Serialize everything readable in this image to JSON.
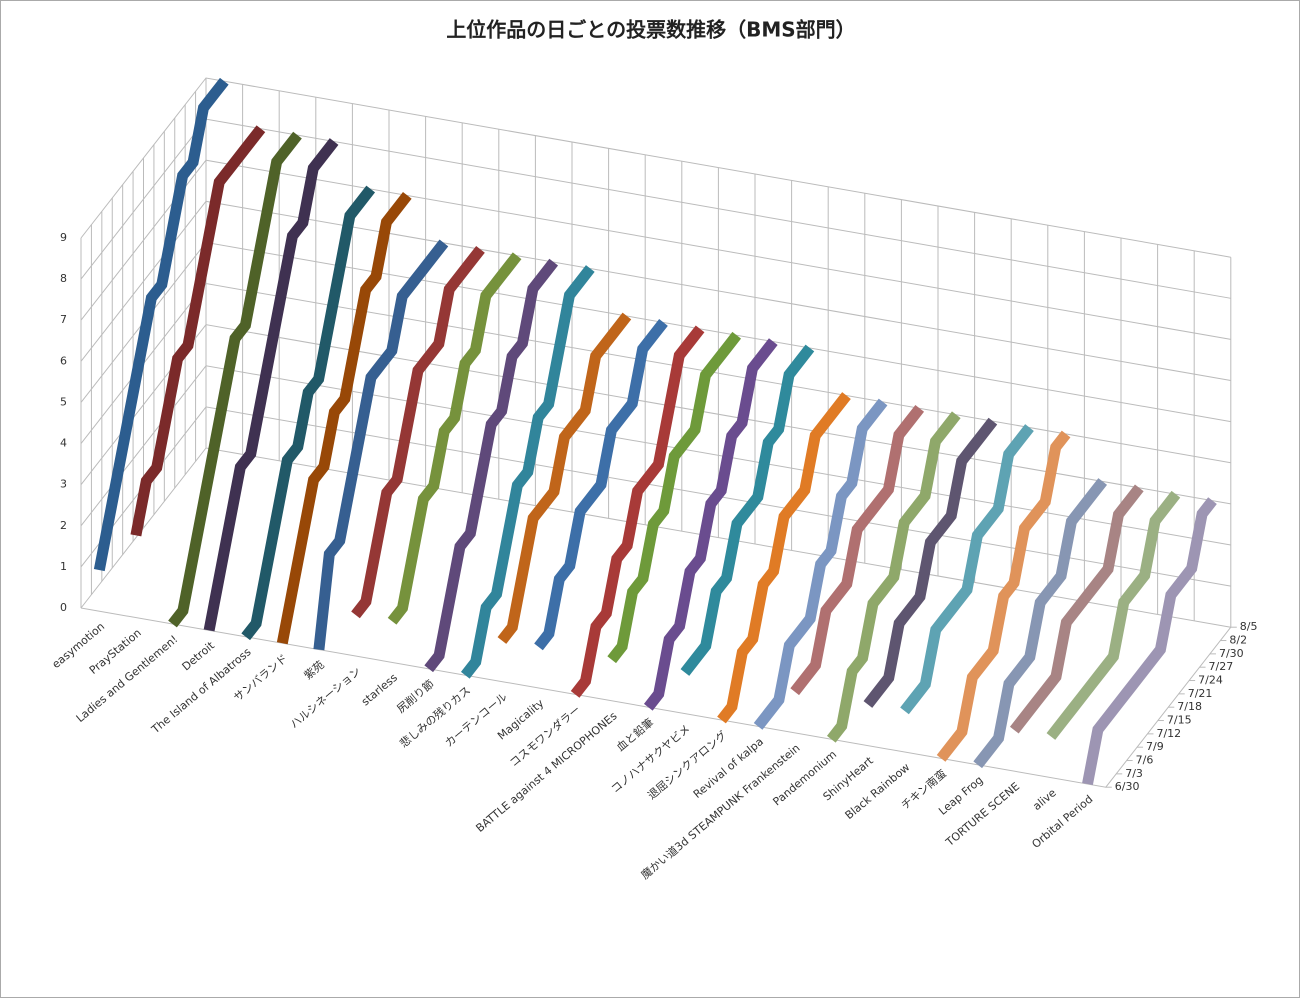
{
  "chart_data": {
    "type": "line3d",
    "title": "上位作品の日ごとの投票数推移（BMS部門）",
    "categories": [
      "easymotion",
      "PrayStation",
      "Ladies and Gentlemen!",
      "Detroit",
      "The Island of Albatross",
      "サンバランド",
      "紫苑",
      "ハルシネーション",
      "starless",
      "尻削り節",
      "悲しみの残りカス",
      "カーテンコール",
      "Magicality",
      "コスモワンダラー",
      "BATTLE against 4 MICROPHONEs",
      "血と鉛筆",
      "コノハナサクヤビメ",
      "退屈シンクアロング",
      "Revival of kalpa",
      "魔かい道3d STEAMPUNK Frankenstein",
      "Pandemonium",
      "ShinyHeart",
      "Black Rainbow",
      "チキン南蛮",
      "Leap Frog",
      "TORTURE SCENE",
      "alive",
      "Orbital Period"
    ],
    "x": [
      "6/30",
      "7/3",
      "7/6",
      "7/9",
      "7/12",
      "7/15",
      "7/18",
      "7/21",
      "7/24",
      "7/27",
      "7/30",
      "8/2",
      "8/5"
    ],
    "ylim": [
      0,
      9
    ],
    "yticks": [
      0,
      1,
      2,
      3,
      4,
      5,
      6,
      7,
      8,
      9
    ],
    "grid": true,
    "series": [
      {
        "color": "#2c5d8f",
        "values": [
          1,
          2,
          3,
          4,
          5,
          6,
          6,
          7,
          8,
          8,
          9,
          9,
          9
        ]
      },
      {
        "color": "#7b2a2a",
        "values": [
          2,
          3,
          3,
          4,
          5,
          5,
          6,
          7,
          8,
          8,
          8,
          8,
          8
        ]
      },
      {
        "color": "#4f6228",
        "values": [
          0,
          0,
          1,
          2,
          3,
          4,
          5,
          5,
          6,
          7,
          8,
          8,
          8
        ]
      },
      {
        "color": "#3f3151",
        "values": [
          0,
          1,
          2,
          3,
          3,
          4,
          5,
          6,
          7,
          7,
          8,
          8,
          8
        ]
      },
      {
        "color": "#215968",
        "values": [
          0,
          0,
          1,
          2,
          3,
          3,
          4,
          4,
          5,
          6,
          7,
          7,
          7
        ]
      },
      {
        "color": "#984807",
        "values": [
          0,
          1,
          2,
          3,
          3,
          4,
          4,
          5,
          6,
          6,
          7,
          7,
          7
        ]
      },
      {
        "color": "#365f91",
        "values": [
          0,
          2,
          2,
          3,
          4,
          5,
          5,
          5,
          6,
          6,
          6,
          6,
          6
        ]
      },
      {
        "color": "#953735",
        "values": [
          1,
          1,
          2,
          3,
          3,
          4,
          5,
          5,
          5,
          6,
          6,
          6,
          6
        ]
      },
      {
        "color": "#76923c",
        "values": [
          1,
          1,
          2,
          3,
          3,
          4,
          4,
          5,
          5,
          6,
          6,
          6,
          6
        ]
      },
      {
        "color": "#5f497a",
        "values": [
          0,
          0,
          1,
          2,
          2,
          3,
          4,
          4,
          5,
          5,
          6,
          6,
          6
        ]
      },
      {
        "color": "#31859b",
        "values": [
          0,
          0,
          1,
          1,
          2,
          3,
          3,
          4,
          4,
          5,
          6,
          6,
          6
        ]
      },
      {
        "color": "#c0651a",
        "values": [
          1,
          1,
          2,
          3,
          3,
          3,
          4,
          4,
          4,
          5,
          5,
          5,
          5
        ]
      },
      {
        "color": "#3d6fa8",
        "values": [
          1,
          1,
          2,
          2,
          3,
          3,
          3,
          4,
          4,
          4,
          5,
          5,
          5
        ]
      },
      {
        "color": "#a83a38",
        "values": [
          0,
          0,
          1,
          1,
          2,
          2,
          3,
          3,
          3,
          4,
          5,
          5,
          5
        ]
      },
      {
        "color": "#6e9a3a",
        "values": [
          1,
          1,
          2,
          2,
          3,
          3,
          4,
          4,
          4,
          5,
          5,
          5,
          5
        ]
      },
      {
        "color": "#6a4c8f",
        "values": [
          0,
          0,
          1,
          1,
          2,
          2,
          3,
          3,
          4,
          4,
          5,
          5,
          5
        ]
      },
      {
        "color": "#2f8a9c",
        "values": [
          1,
          1,
          1,
          2,
          2,
          3,
          3,
          3,
          4,
          4,
          5,
          5,
          5
        ]
      },
      {
        "color": "#e07b25",
        "values": [
          0,
          0,
          1,
          1,
          2,
          2,
          3,
          3,
          3,
          4,
          4,
          4,
          4
        ]
      },
      {
        "color": "#7b96c2",
        "values": [
          0,
          0,
          0,
          1,
          1,
          1,
          2,
          2,
          3,
          3,
          4,
          4,
          4
        ]
      },
      {
        "color": "#b07070",
        "values": [
          1,
          1,
          1,
          2,
          2,
          2,
          3,
          3,
          3,
          3,
          4,
          4,
          4
        ]
      },
      {
        "color": "#8fa86a",
        "values": [
          0,
          0,
          1,
          1,
          2,
          2,
          2,
          3,
          3,
          3,
          4,
          4,
          4
        ]
      },
      {
        "color": "#5e5570",
        "values": [
          1,
          1,
          1,
          2,
          2,
          2,
          3,
          3,
          3,
          4,
          4,
          4,
          4
        ]
      },
      {
        "color": "#5ea3b3",
        "values": [
          1,
          1,
          1,
          2,
          2,
          2,
          2,
          3,
          3,
          3,
          4,
          4,
          4
        ]
      },
      {
        "color": "#e0935a",
        "values": [
          0,
          0,
          0,
          1,
          1,
          1,
          2,
          2,
          3,
          3,
          3,
          4,
          4
        ]
      },
      {
        "color": "#8796b3",
        "values": [
          0,
          0,
          0,
          1,
          1,
          1,
          2,
          2,
          2,
          3,
          3,
          3,
          3
        ]
      },
      {
        "color": "#a88484",
        "values": [
          1,
          1,
          1,
          1,
          1,
          2,
          2,
          2,
          2,
          2,
          3,
          3,
          3
        ]
      },
      {
        "color": "#9bb083",
        "values": [
          1,
          1,
          1,
          1,
          1,
          1,
          1,
          2,
          2,
          2,
          3,
          3,
          3
        ]
      },
      {
        "color": "#9d95b3",
        "values": [
          0,
          1,
          1,
          1,
          1,
          1,
          1,
          1,
          2,
          2,
          2,
          3,
          3
        ]
      }
    ]
  }
}
